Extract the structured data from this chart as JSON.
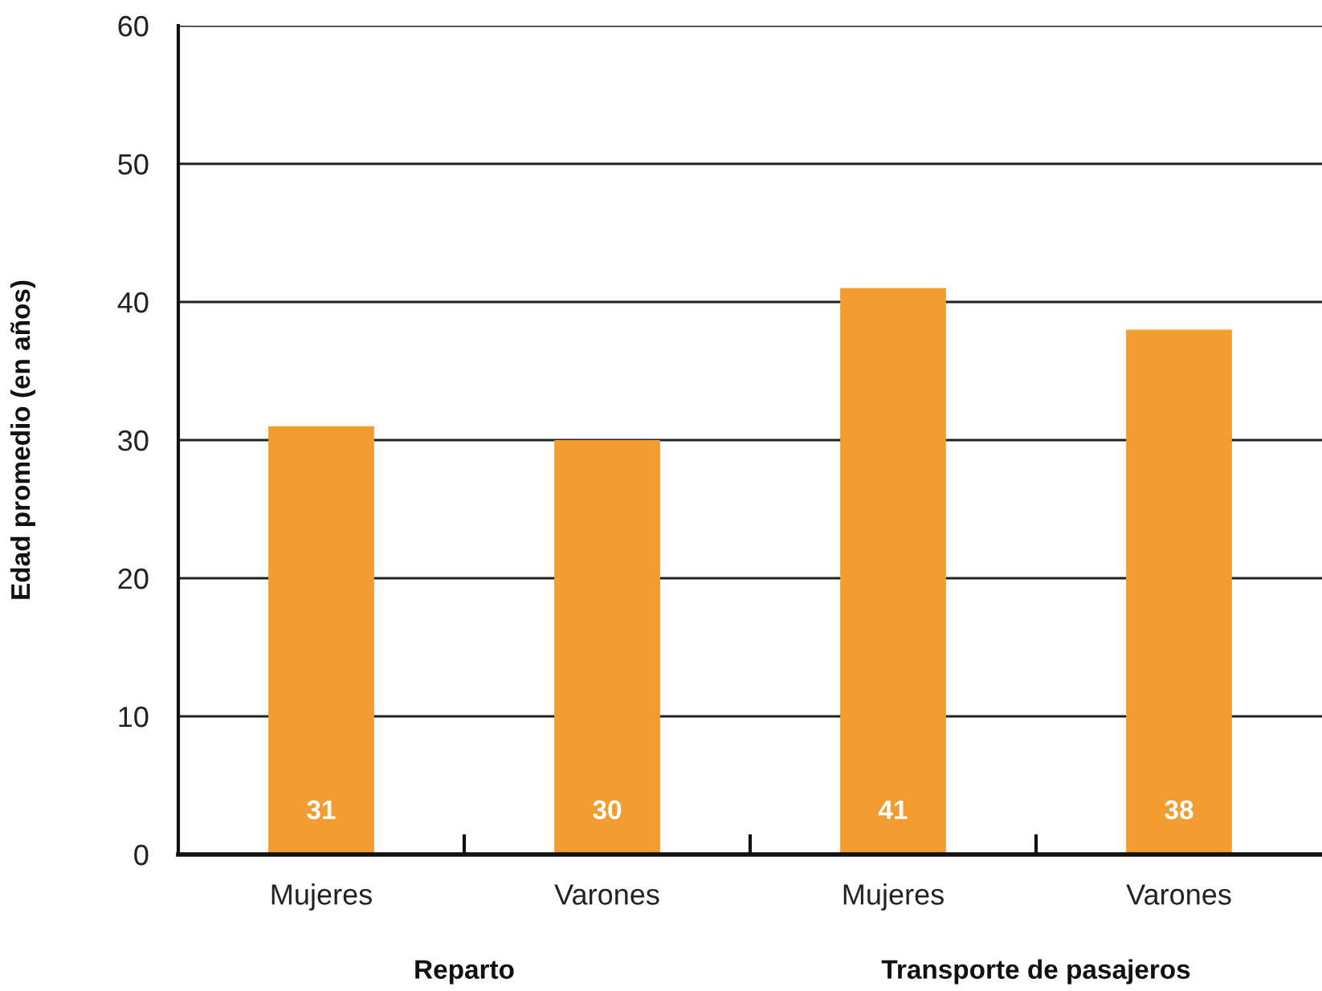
{
  "chart_data": {
    "type": "bar",
    "ylabel": "Edad promedio (en años)",
    "categories": [
      "Mujeres",
      "Varones",
      "Mujeres",
      "Varones"
    ],
    "values": [
      31,
      30,
      41,
      38
    ],
    "color": "#f39d30",
    "ylim": [
      0,
      60
    ],
    "yticks": [
      0,
      10,
      20,
      30,
      40,
      50,
      60
    ],
    "grid": "y",
    "data_labels": true,
    "annotations": [
      "Reparto",
      "Transporte de pasajeros"
    ]
  }
}
